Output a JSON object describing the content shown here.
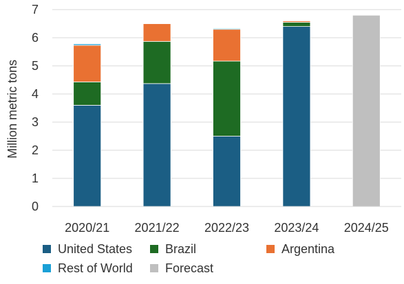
{
  "chart_data": {
    "type": "bar",
    "stacked": true,
    "title": "",
    "xlabel": "",
    "ylabel": "Million metric tons",
    "ylim": [
      0,
      7
    ],
    "yticks": [
      0,
      1,
      2,
      3,
      4,
      5,
      6,
      7
    ],
    "grid": true,
    "legend_position": "bottom",
    "categories": [
      "2020/21",
      "2021/22",
      "2022/23",
      "2023/24",
      "2024/25"
    ],
    "series": [
      {
        "name": "United States",
        "color": "#1b5e84",
        "values": [
          3.6,
          4.37,
          2.5,
          6.4,
          0
        ]
      },
      {
        "name": "Brazil",
        "color": "#1e6b23",
        "values": [
          0.83,
          1.5,
          2.67,
          0.15,
          0
        ]
      },
      {
        "name": "Argentina",
        "color": "#e97132",
        "values": [
          1.3,
          0.63,
          1.13,
          0.05,
          0
        ]
      },
      {
        "name": "Rest of World",
        "color": "#1aa0d6",
        "values": [
          0.05,
          0.01,
          0.03,
          0.02,
          0
        ]
      },
      {
        "name": "Forecast",
        "color": "#bfbfbf",
        "values": [
          0,
          0,
          0,
          0,
          6.8
        ]
      }
    ]
  }
}
